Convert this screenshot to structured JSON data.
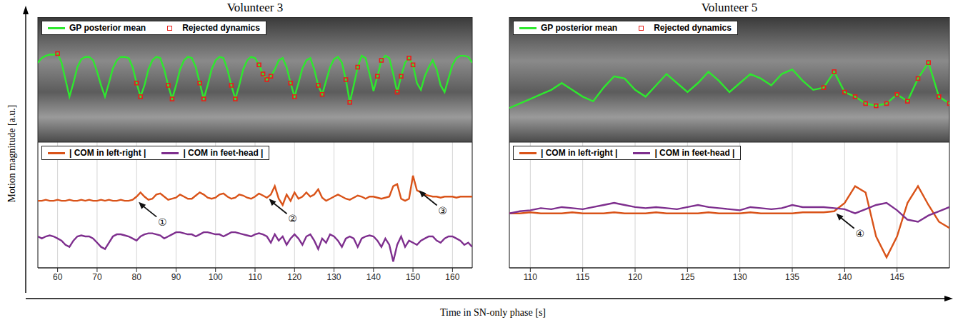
{
  "xlabel": "Time in SN-only phase [s]",
  "ylabel": "Motion magnitude [a.u.]",
  "chart_data": [
    {
      "type": "line",
      "title": "Volunteer 3",
      "x": [
        55,
        56,
        57,
        58,
        59,
        60,
        61,
        62,
        63,
        64,
        65,
        66,
        67,
        68,
        69,
        70,
        71,
        72,
        73,
        74,
        75,
        76,
        77,
        78,
        79,
        80,
        81,
        82,
        83,
        84,
        85,
        86,
        87,
        88,
        89,
        90,
        91,
        92,
        93,
        94,
        95,
        96,
        97,
        98,
        99,
        100,
        101,
        102,
        103,
        104,
        105,
        106,
        107,
        108,
        109,
        110,
        111,
        112,
        113,
        114,
        115,
        116,
        117,
        118,
        119,
        120,
        121,
        122,
        123,
        124,
        125,
        126,
        127,
        128,
        129,
        130,
        131,
        132,
        133,
        134,
        135,
        136,
        137,
        138,
        139,
        140,
        141,
        142,
        143,
        144,
        145,
        146,
        147,
        148,
        149,
        150,
        151,
        152,
        153,
        154,
        155,
        156,
        157,
        158,
        159,
        160,
        161,
        162,
        163,
        164,
        165
      ],
      "xlim": [
        55,
        165
      ],
      "xticks": [],
      "ylim": [
        0,
        110
      ],
      "yticks": [],
      "tick_labels": false,
      "grid": false,
      "legend": "upper left",
      "series": [
        {
          "name": "GP posterior mean",
          "color": "#2ee82e",
          "type": "line",
          "values": [
            70,
            74,
            76,
            77,
            77,
            78,
            70,
            55,
            40,
            52,
            66,
            73,
            75,
            75,
            72,
            62,
            50,
            40,
            52,
            65,
            72,
            75,
            75,
            74,
            66,
            52,
            40,
            50,
            64,
            72,
            75,
            74,
            64,
            50,
            38,
            50,
            64,
            72,
            75,
            74,
            66,
            52,
            38,
            50,
            64,
            72,
            75,
            74,
            64,
            50,
            38,
            50,
            64,
            72,
            75,
            74,
            68,
            60,
            55,
            58,
            64,
            72,
            74,
            66,
            52,
            40,
            52,
            65,
            72,
            74,
            64,
            50,
            42,
            54,
            66,
            73,
            75,
            70,
            55,
            35,
            50,
            66,
            76,
            74,
            60,
            45,
            58,
            72,
            76,
            74,
            60,
            44,
            58,
            70,
            74,
            68,
            52,
            46,
            58,
            66,
            72,
            64,
            50,
            44,
            56,
            68,
            74,
            76,
            76,
            75,
            70
          ]
        },
        {
          "name": "Rejected dynamics",
          "color": "#e8201a",
          "type": "scatter",
          "marker": "square",
          "values": [
            null,
            null,
            null,
            null,
            null,
            78,
            null,
            null,
            null,
            null,
            null,
            null,
            null,
            null,
            null,
            null,
            null,
            null,
            null,
            null,
            null,
            null,
            null,
            null,
            null,
            52,
            40,
            null,
            null,
            null,
            null,
            null,
            null,
            50,
            38,
            null,
            null,
            null,
            null,
            null,
            null,
            52,
            38,
            null,
            null,
            null,
            null,
            null,
            null,
            50,
            38,
            null,
            null,
            null,
            null,
            null,
            68,
            60,
            55,
            58,
            null,
            null,
            null,
            null,
            52,
            40,
            null,
            null,
            null,
            null,
            null,
            50,
            42,
            null,
            null,
            null,
            null,
            null,
            55,
            35,
            null,
            66,
            null,
            null,
            null,
            null,
            58,
            72,
            null,
            null,
            null,
            44,
            58,
            null,
            74,
            68,
            null,
            null,
            null,
            null,
            null,
            null,
            null,
            null,
            null,
            null,
            null,
            null,
            null,
            null,
            null
          ]
        }
      ]
    },
    {
      "type": "line",
      "x": [
        55,
        56,
        57,
        58,
        59,
        60,
        61,
        62,
        63,
        64,
        65,
        66,
        67,
        68,
        69,
        70,
        71,
        72,
        73,
        74,
        75,
        76,
        77,
        78,
        79,
        80,
        81,
        82,
        83,
        84,
        85,
        86,
        87,
        88,
        89,
        90,
        91,
        92,
        93,
        94,
        95,
        96,
        97,
        98,
        99,
        100,
        101,
        102,
        103,
        104,
        105,
        106,
        107,
        108,
        109,
        110,
        111,
        112,
        113,
        114,
        115,
        116,
        117,
        118,
        119,
        120,
        121,
        122,
        123,
        124,
        125,
        126,
        127,
        128,
        129,
        130,
        131,
        132,
        133,
        134,
        135,
        136,
        137,
        138,
        139,
        140,
        141,
        142,
        143,
        144,
        145,
        146,
        147,
        148,
        149,
        150,
        151,
        152,
        153,
        154,
        155,
        156,
        157,
        158,
        159,
        160,
        161,
        162,
        163,
        164,
        165
      ],
      "xlim": [
        55,
        165
      ],
      "xticks": [
        60,
        70,
        80,
        90,
        100,
        110,
        120,
        130,
        140,
        150,
        160
      ],
      "ylim": [
        0,
        120
      ],
      "yticks": [],
      "tick_labels": "x",
      "grid": true,
      "legend": "upper left",
      "series": [
        {
          "name": "| COM in left-right |",
          "color": "#d95319",
          "values": [
            64,
            64,
            65,
            64,
            64,
            65,
            64,
            64,
            65,
            64,
            64,
            65,
            64,
            65,
            64,
            64,
            65,
            64,
            65,
            64,
            64,
            65,
            64,
            64,
            65,
            68,
            72,
            68,
            65,
            66,
            70,
            71,
            68,
            65,
            66,
            67,
            70,
            68,
            66,
            66,
            69,
            72,
            70,
            67,
            66,
            67,
            70,
            71,
            68,
            66,
            67,
            70,
            69,
            67,
            66,
            68,
            71,
            69,
            67,
            70,
            78,
            66,
            60,
            70,
            64,
            72,
            66,
            68,
            72,
            68,
            70,
            75,
            67,
            64,
            66,
            68,
            70,
            68,
            66,
            65,
            67,
            69,
            68,
            66,
            68,
            68,
            67,
            66,
            67,
            68,
            78,
            80,
            66,
            64,
            66,
            88,
            74,
            72,
            70,
            69,
            68,
            68,
            67,
            68,
            68,
            68,
            67,
            68,
            68,
            68,
            68
          ]
        },
        {
          "name": "| COM in feet-head |",
          "color": "#7e2f8e",
          "values": [
            30,
            28,
            30,
            31,
            30,
            28,
            26,
            22,
            20,
            26,
            30,
            31,
            30,
            30,
            28,
            24,
            20,
            18,
            24,
            30,
            32,
            32,
            31,
            30,
            28,
            26,
            30,
            32,
            33,
            33,
            32,
            31,
            28,
            30,
            32,
            34,
            34,
            33,
            32,
            32,
            30,
            32,
            34,
            34,
            33,
            32,
            32,
            30,
            32,
            34,
            34,
            33,
            32,
            31,
            30,
            32,
            33,
            32,
            30,
            24,
            32,
            26,
            30,
            22,
            28,
            32,
            28,
            22,
            30,
            32,
            26,
            18,
            28,
            24,
            32,
            30,
            26,
            20,
            28,
            30,
            28,
            20,
            28,
            30,
            31,
            30,
            26,
            20,
            28,
            22,
            6,
            22,
            30,
            20,
            26,
            24,
            22,
            26,
            28,
            30,
            30,
            26,
            24,
            28,
            30,
            30,
            28,
            26,
            22,
            24,
            20
          ]
        }
      ],
      "annotations": [
        {
          "text": "①",
          "x": 80,
          "y": 65
        },
        {
          "text": "②",
          "x": 113,
          "y": 68
        },
        {
          "text": "③",
          "x": 151,
          "y": 76
        }
      ]
    },
    {
      "type": "line",
      "title": "Volunteer 5",
      "x": [
        108,
        109,
        110,
        111,
        112,
        113,
        114,
        115,
        116,
        117,
        118,
        119,
        120,
        121,
        122,
        123,
        124,
        125,
        126,
        127,
        128,
        129,
        130,
        131,
        132,
        133,
        134,
        135,
        136,
        137,
        138,
        139,
        140,
        141,
        142,
        143,
        144,
        145,
        146,
        147,
        148,
        149,
        150
      ],
      "xlim": [
        108,
        150
      ],
      "xticks": [],
      "ylim": [
        0,
        110
      ],
      "yticks": [],
      "tick_labels": false,
      "grid": false,
      "legend": "upper left",
      "series": [
        {
          "name": "GP posterior mean",
          "color": "#2ee82e",
          "type": "line",
          "values": [
            30,
            34,
            38,
            42,
            46,
            52,
            46,
            40,
            36,
            48,
            58,
            56,
            46,
            40,
            50,
            60,
            52,
            44,
            52,
            62,
            54,
            44,
            52,
            60,
            56,
            50,
            60,
            64,
            54,
            46,
            48,
            62,
            44,
            40,
            34,
            32,
            34,
            42,
            36,
            56,
            70,
            40,
            34
          ]
        },
        {
          "name": "Rejected dynamics",
          "color": "#e8201a",
          "type": "scatter",
          "marker": "square",
          "values": [
            null,
            null,
            null,
            null,
            null,
            null,
            null,
            null,
            null,
            null,
            null,
            null,
            null,
            null,
            null,
            null,
            null,
            null,
            null,
            null,
            null,
            null,
            null,
            null,
            null,
            null,
            null,
            null,
            null,
            null,
            48,
            62,
            44,
            40,
            34,
            32,
            34,
            42,
            36,
            56,
            70,
            40,
            34
          ]
        }
      ]
    },
    {
      "type": "line",
      "x": [
        108,
        109,
        110,
        111,
        112,
        113,
        114,
        115,
        116,
        117,
        118,
        119,
        120,
        121,
        122,
        123,
        124,
        125,
        126,
        127,
        128,
        129,
        130,
        131,
        132,
        133,
        134,
        135,
        136,
        137,
        138,
        139,
        140,
        141,
        142,
        143,
        144,
        145,
        146,
        147,
        148,
        149,
        150
      ],
      "xlim": [
        108,
        150
      ],
      "xticks": [
        110,
        115,
        120,
        125,
        130,
        135,
        140,
        145
      ],
      "ylim": [
        0,
        120
      ],
      "yticks": [],
      "tick_labels": "x",
      "grid": true,
      "legend": "upper left",
      "series": [
        {
          "name": "| COM in left-right |",
          "color": "#d95319",
          "values": [
            52,
            52,
            53,
            52,
            52,
            52,
            53,
            52,
            52,
            52,
            53,
            52,
            52,
            52,
            53,
            52,
            52,
            52,
            52,
            53,
            52,
            52,
            52,
            53,
            52,
            52,
            52,
            52,
            53,
            53,
            53,
            54,
            62,
            78,
            72,
            30,
            10,
            30,
            62,
            78,
            60,
            44,
            38
          ]
        },
        {
          "name": "| COM in feet-head |",
          "color": "#7e2f8e",
          "values": [
            52,
            54,
            55,
            57,
            56,
            58,
            57,
            56,
            58,
            60,
            62,
            60,
            58,
            57,
            58,
            57,
            56,
            58,
            60,
            58,
            57,
            56,
            55,
            58,
            57,
            56,
            57,
            60,
            58,
            58,
            58,
            57,
            56,
            52,
            56,
            60,
            62,
            55,
            46,
            44,
            50,
            54,
            58
          ]
        }
      ],
      "annotations": [
        {
          "text": "④",
          "x": 139,
          "y": 54
        }
      ]
    }
  ]
}
